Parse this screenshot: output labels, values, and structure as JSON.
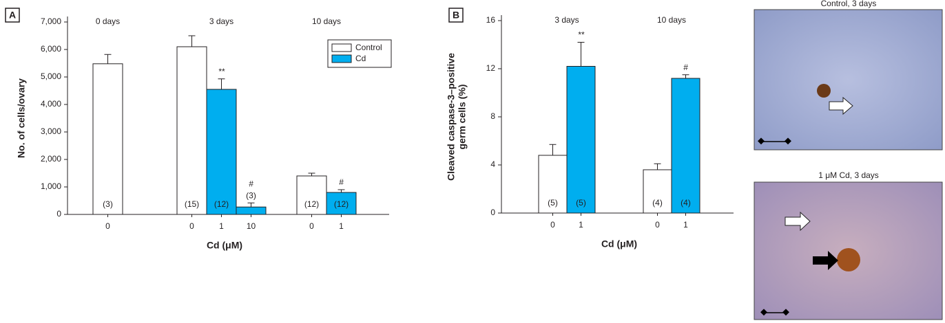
{
  "chart_data": [
    {
      "type": "bar",
      "panel": "A",
      "ylabel": [
        "No. of cells/ovary"
      ],
      "xlabel": "Cd (μM)",
      "ylim": [
        0,
        7000
      ],
      "yticks": [
        0,
        {
          "value": 1000,
          "label": "1,000"
        },
        {
          "value": 2000,
          "label": "2,000"
        },
        {
          "value": 3000,
          "label": "3,000"
        },
        {
          "value": 4000,
          "label": "4,000"
        },
        {
          "value": 5000,
          "label": "5,000"
        },
        {
          "value": 6000,
          "label": "6,000"
        },
        {
          "value": 7000,
          "label": "7,000"
        }
      ],
      "legend": [
        {
          "name": "Control",
          "color": "#ffffff"
        },
        {
          "name": "Cd",
          "color": "#00aeef"
        }
      ],
      "legend_position": "upper right",
      "groups": [
        {
          "label": "0 days",
          "categories": [
            "0"
          ],
          "series": [
            {
              "values": [
                5480
              ],
              "errors": [
                340
              ],
              "n_labels": [
                "(3)"
              ],
              "annotations": [
                null
              ]
            },
            {
              "values": [
                null
              ],
              "errors": [
                null
              ],
              "n_labels": [
                null
              ],
              "annotations": [
                null
              ]
            }
          ]
        },
        {
          "label": "3 days",
          "categories": [
            "0",
            "1",
            "10"
          ],
          "series": [
            {
              "values": [
                6100,
                null,
                null
              ],
              "errors": [
                400,
                null,
                null
              ],
              "n_labels": [
                "(15)",
                null,
                null
              ],
              "annotations": [
                null,
                null,
                null
              ]
            },
            {
              "values": [
                null,
                4550,
                270
              ],
              "errors": [
                null,
                380,
                150
              ],
              "n_labels": [
                null,
                "(12)",
                "(3)"
              ],
              "annotations": [
                null,
                "**",
                "#"
              ]
            }
          ]
        },
        {
          "label": "10 days",
          "categories": [
            "0",
            "1"
          ],
          "series": [
            {
              "values": [
                1400,
                null
              ],
              "errors": [
                100,
                null
              ],
              "n_labels": [
                "(12)",
                null
              ],
              "annotations": [
                null,
                null
              ]
            },
            {
              "values": [
                null,
                800
              ],
              "errors": [
                null,
                100
              ],
              "n_labels": [
                null,
                "(12)"
              ],
              "annotations": [
                null,
                "#"
              ]
            }
          ]
        }
      ]
    },
    {
      "type": "bar",
      "panel": "B",
      "ylabel": [
        "Cleaved caspase-3–positive",
        "germ cells (%)"
      ],
      "xlabel": "Cd (μM)",
      "ylim": [
        0,
        16
      ],
      "yticks": [
        0,
        4,
        8,
        12,
        16
      ],
      "legend": [
        {
          "color": "#ffffff"
        },
        {
          "color": "#00aeef"
        }
      ],
      "groups": [
        {
          "label": "3 days",
          "categories": [
            "0",
            "1"
          ],
          "series": [
            {
              "values": [
                4.8,
                null
              ],
              "errors": [
                0.9,
                null
              ],
              "n_labels": [
                "(5)",
                null
              ],
              "annotations": [
                null,
                null
              ]
            },
            {
              "values": [
                null,
                12.2
              ],
              "errors": [
                null,
                2.0
              ],
              "n_labels": [
                null,
                "(5)"
              ],
              "annotations": [
                null,
                "**"
              ]
            }
          ]
        },
        {
          "label": "10 days",
          "categories": [
            "0",
            "1"
          ],
          "series": [
            {
              "values": [
                3.6,
                null
              ],
              "errors": [
                0.5,
                null
              ],
              "n_labels": [
                "(4)",
                null
              ],
              "annotations": [
                null,
                null
              ]
            },
            {
              "values": [
                null,
                11.2
              ],
              "errors": [
                null,
                0.3
              ],
              "n_labels": [
                null,
                "(4)"
              ],
              "annotations": [
                null,
                "#"
              ]
            }
          ]
        }
      ]
    }
  ],
  "images": [
    {
      "caption": "Control, 3 days"
    },
    {
      "caption": "1 μM Cd, 3 days"
    }
  ]
}
